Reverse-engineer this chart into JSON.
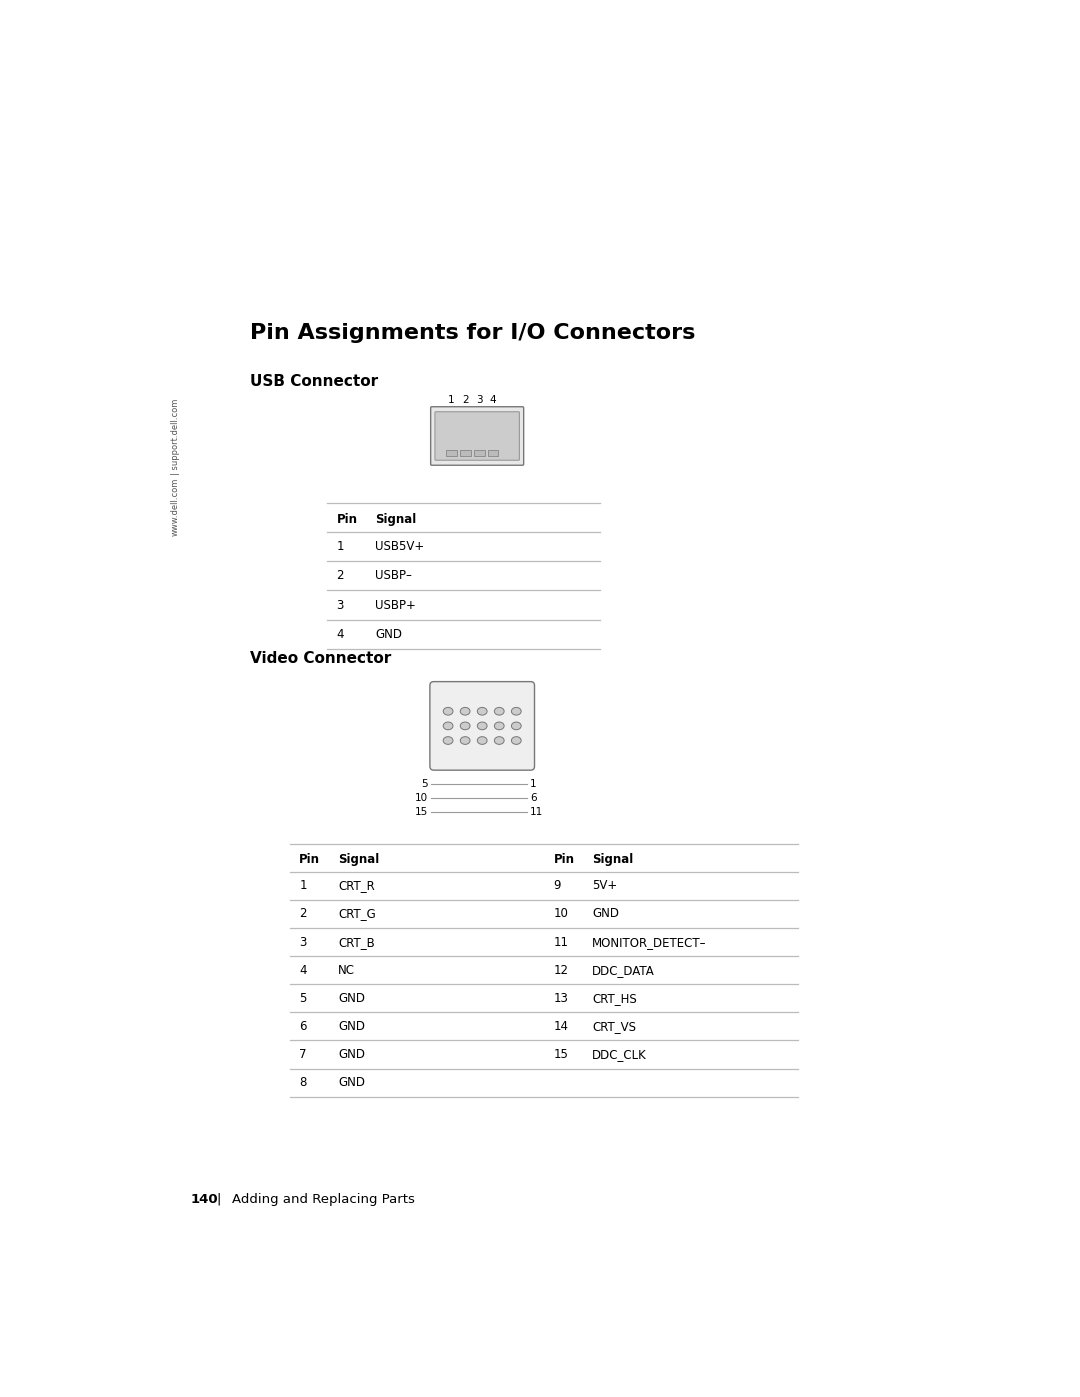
{
  "title": "Pin Assignments for I/O Connectors",
  "usb_section_title": "USB Connector",
  "video_section_title": "Video Connector",
  "usb_table_header": [
    "Pin",
    "Signal"
  ],
  "usb_table_data": [
    [
      "1",
      "USB5V+"
    ],
    [
      "2",
      "USBP–"
    ],
    [
      "3",
      "USBP+"
    ],
    [
      "4",
      "GND"
    ]
  ],
  "video_table_header_left": [
    "Pin",
    "Signal"
  ],
  "video_table_header_right": [
    "Pin",
    "Signal"
  ],
  "video_table_data": [
    [
      "1",
      "CRT_R",
      "9",
      "5V+"
    ],
    [
      "2",
      "CRT_G",
      "10",
      "GND"
    ],
    [
      "3",
      "CRT_B",
      "11",
      "MONITOR_DETECT–"
    ],
    [
      "4",
      "NC",
      "12",
      "DDC_DATA"
    ],
    [
      "5",
      "GND",
      "13",
      "CRT_HS"
    ],
    [
      "6",
      "GND",
      "14",
      "CRT_VS"
    ],
    [
      "7",
      "GND",
      "15",
      "DDC_CLK"
    ],
    [
      "8",
      "GND",
      "",
      ""
    ]
  ],
  "sidebar_text1": "www.dell.com",
  "sidebar_text2": "support.dell.com",
  "footer_page": "140",
  "footer_sep": "|",
  "footer_label": "Adding and Replacing Parts",
  "usb_pin_labels": [
    "1",
    "2",
    "3",
    "4"
  ],
  "bg_color": "#ffffff",
  "text_color": "#000000",
  "table_line_color": "#aaaaaa",
  "sidebar_color": "#555555",
  "connector_edge": "#777777"
}
